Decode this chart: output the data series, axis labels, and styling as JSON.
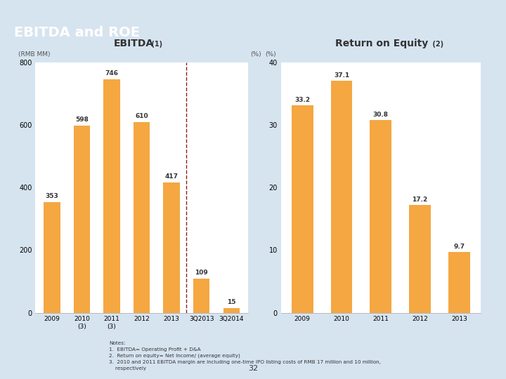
{
  "title": "EBITDA and ROE",
  "title_bg_color": "#A52A2A",
  "title_text_color": "#FFFFFF",
  "ebitda_title": "EBITDA",
  "ebitda_sup": " (1)",
  "roe_title": "Return on Equity",
  "roe_sup": " (2)",
  "ebitda_ylabel": "(RMB MM)",
  "ebitda_ylabel2": "(%)",
  "roe_ylabel": "(%)",
  "ebitda_categories": [
    "2009",
    "2010\n(3)",
    "2011\n(3)",
    "2012",
    "2013",
    "3Q2013",
    "3Q2014"
  ],
  "ebitda_values": [
    353,
    598,
    746,
    610,
    417,
    109,
    15
  ],
  "ebitda_ylim": [
    0,
    800
  ],
  "ebitda_yticks": [
    0,
    200,
    400,
    600,
    800
  ],
  "roe_categories": [
    "2009",
    "2010",
    "2011",
    "2012",
    "2013"
  ],
  "roe_values": [
    33.2,
    37.1,
    30.8,
    17.2,
    9.7
  ],
  "roe_ylim": [
    0,
    40
  ],
  "roe_yticks": [
    0,
    10,
    20,
    30,
    40
  ],
  "bar_color": "#F5A742",
  "divider_color": "#8B2020",
  "title_underline_color": "#8B2020",
  "notes_text": "Notes:\n1.  EBITDA= Operating Profit + D&A\n2.  Return on equity= Net Income/ (average equity)\n3.  2010 and 2011 EBITDA margin are including one-time IPO listing costs of RMB 17 million and 10 million,\n    respectively",
  "page_number": "32",
  "background_color": "#FFFFFF",
  "slide_bg_color": "#D6E4F0",
  "footer_gold_color": "#C8A020",
  "text_color": "#333333",
  "label_color": "#555555"
}
